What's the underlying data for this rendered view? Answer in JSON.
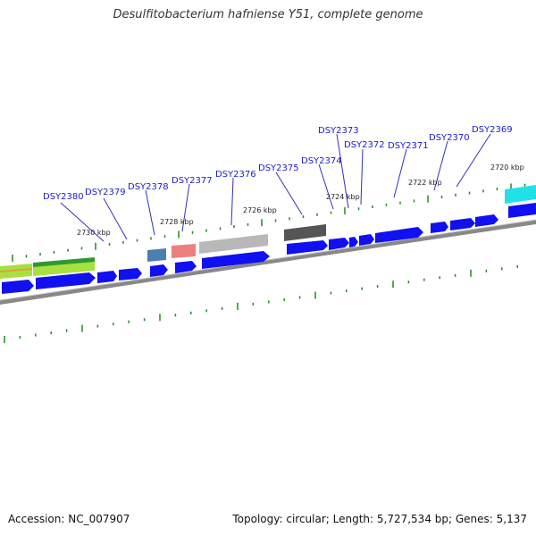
{
  "title": "Desulfitobacterium hafniense Y51, complete genome",
  "footer": {
    "accession": "Accession: NC_007907",
    "topology": "Topology: circular; Length: 5,727,534 bp; Genes: 5,137"
  },
  "genes": [
    {
      "id": "DSY2380",
      "label": "DSY2380"
    },
    {
      "id": "DSY2379",
      "label": "DSY2379"
    },
    {
      "id": "DSY2378",
      "label": "DSY2378"
    },
    {
      "id": "DSY2377",
      "label": "DSY2377"
    },
    {
      "id": "DSY2376",
      "label": "DSY2376"
    },
    {
      "id": "DSY2375",
      "label": "DSY2375"
    },
    {
      "id": "DSY2374",
      "label": "DSY2374"
    },
    {
      "id": "DSY2373",
      "label": "DSY2373"
    },
    {
      "id": "DSY2372",
      "label": "DSY2372"
    },
    {
      "id": "DSY2371",
      "label": "DSY2371"
    },
    {
      "id": "DSY2370",
      "label": "DSY2370"
    },
    {
      "id": "DSY2369",
      "label": "DSY2369"
    }
  ],
  "scale_labels": [
    "2730 kbp",
    "2728 kbp",
    "2726 kbp",
    "2724 kbp",
    "2722 kbp",
    "2720 kbp"
  ],
  "colors": {
    "cds": "#1010f0",
    "cds_shadow": "#7a7ae0",
    "backbone": "#888888",
    "tick": "#1f8a1f",
    "label_text": "#1a1ad6",
    "leader_line": "#3030c0",
    "feature_green": "#2e9a2e",
    "feature_lightgreen": "#a8e040",
    "feature_steelblue": "#4a7fb0",
    "feature_salmon": "#ec8080",
    "feature_lightgray": "#b0b0b0",
    "feature_darkgray": "#555555",
    "feature_cyan": "#20e0e8"
  }
}
